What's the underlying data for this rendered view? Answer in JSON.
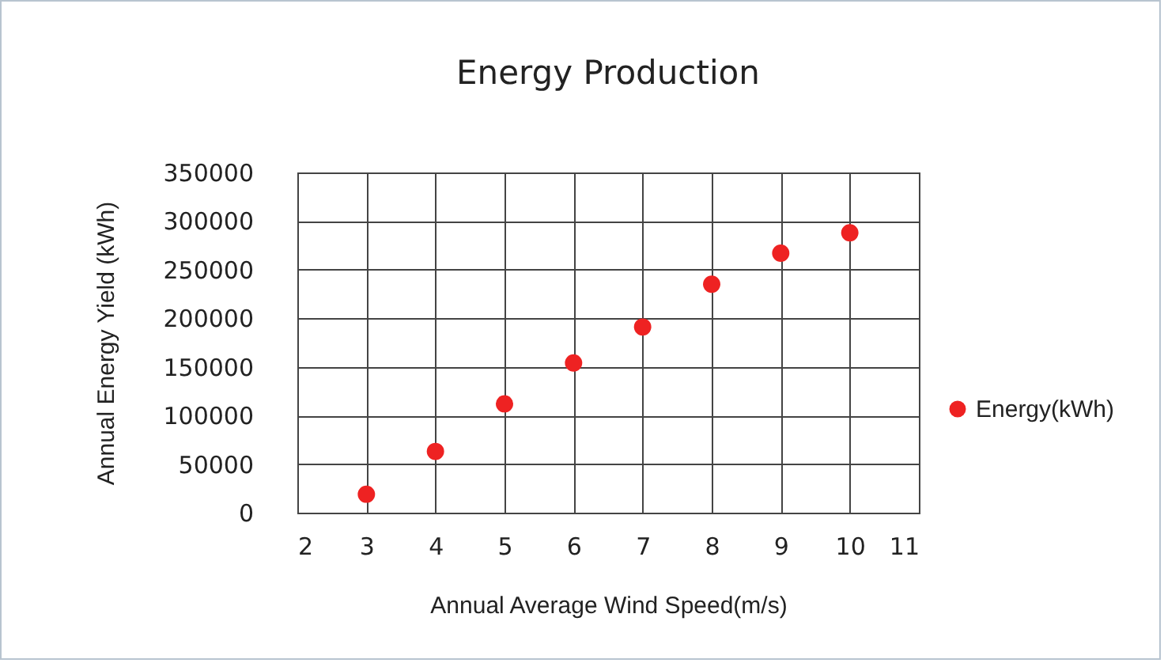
{
  "chart_data": {
    "type": "scatter",
    "title": "Energy  Production",
    "xlabel": "Annual Average Wind Speed(m/s)",
    "ylabel": "Annual Energy  Yield (kWh)",
    "x": [
      3,
      4,
      5,
      6,
      7,
      8,
      9,
      10
    ],
    "series": [
      {
        "name": "Energy(kWh)",
        "color": "#ee2222",
        "values": [
          19000,
          63000,
          112000,
          154000,
          191000,
          235000,
          267000,
          288000
        ]
      }
    ],
    "xlim": [
      2,
      11
    ],
    "xticks": [
      2,
      3,
      4,
      5,
      6,
      7,
      8,
      9,
      10,
      11
    ],
    "ylim": [
      0,
      350000
    ],
    "yticks": [
      0,
      50000,
      100000,
      150000,
      200000,
      250000,
      300000,
      350000
    ],
    "grid": true,
    "legend": "right",
    "marker": "circle"
  }
}
